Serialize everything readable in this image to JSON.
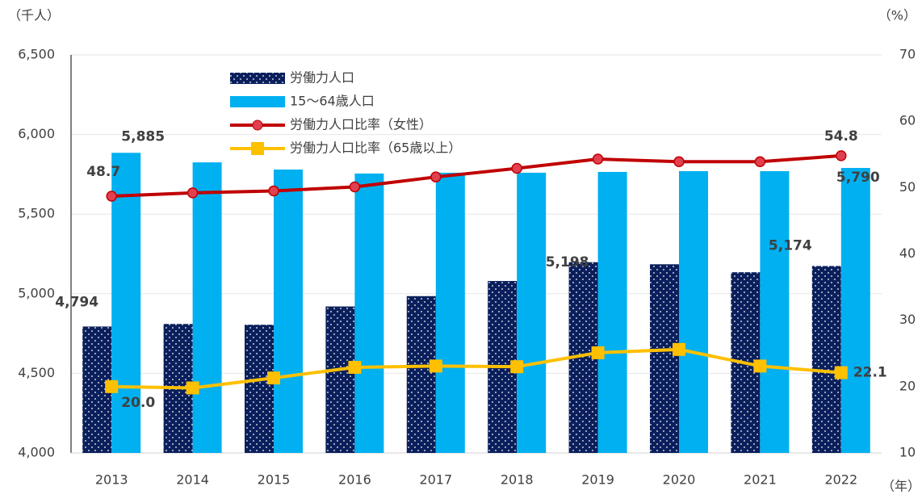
{
  "chart_data": {
    "type": "bar-line",
    "y_label": "（千人）",
    "y2_label": "（%）",
    "x_label": "（年）",
    "categories": [
      "2013",
      "2014",
      "2015",
      "2016",
      "2017",
      "2018",
      "2019",
      "2020",
      "2021",
      "2022"
    ],
    "ylim": [
      4000,
      6500
    ],
    "yticks": [
      {
        "value": 4000,
        "label": "4,000"
      },
      {
        "value": 4500,
        "label": "4,500"
      },
      {
        "value": 5000,
        "label": "5,000"
      },
      {
        "value": 5500,
        "label": "5,500"
      },
      {
        "value": 6000,
        "label": "6,000"
      },
      {
        "value": 6500,
        "label": "6,500"
      }
    ],
    "y2lim": [
      10,
      70
    ],
    "y2ticks": [
      10,
      20,
      30,
      40,
      50,
      60,
      70
    ],
    "grid": true,
    "legend": "upper left",
    "series": [
      {
        "name": "労働力人口",
        "type": "bar",
        "color": "#0a1f5c",
        "values": [
          4794,
          4810,
          4805,
          4920,
          4985,
          5080,
          5198,
          5185,
          5135,
          5174
        ],
        "value_labels": [
          "4,794",
          null,
          null,
          null,
          null,
          null,
          "5,198",
          null,
          null,
          "5,174"
        ]
      },
      {
        "name": "15～64歳人口",
        "type": "bar",
        "color": "#00b0f0",
        "values": [
          5885,
          5825,
          5780,
          5755,
          5760,
          5760,
          5765,
          5770,
          5770,
          5790
        ],
        "value_labels": [
          "5,885",
          null,
          null,
          null,
          null,
          null,
          null,
          null,
          null,
          "5,790"
        ]
      },
      {
        "name": "労働力人口比率（女性）",
        "type": "line",
        "axis": "y2",
        "color": "#c00000",
        "values": [
          48.7,
          49.2,
          49.5,
          50.1,
          51.6,
          52.9,
          54.3,
          53.9,
          53.9,
          54.8
        ],
        "value_labels": [
          "48.7",
          null,
          null,
          null,
          null,
          null,
          null,
          null,
          null,
          "54.8"
        ]
      },
      {
        "name": "労働力人口比率（65歳以上）",
        "type": "line",
        "axis": "y2",
        "color": "#ffc000",
        "values": [
          20.0,
          19.8,
          21.3,
          22.9,
          23.1,
          23.0,
          25.1,
          25.6,
          23.1,
          22.1
        ],
        "value_labels": [
          "20.0",
          null,
          null,
          null,
          null,
          null,
          null,
          null,
          null,
          "22.1"
        ]
      }
    ]
  }
}
